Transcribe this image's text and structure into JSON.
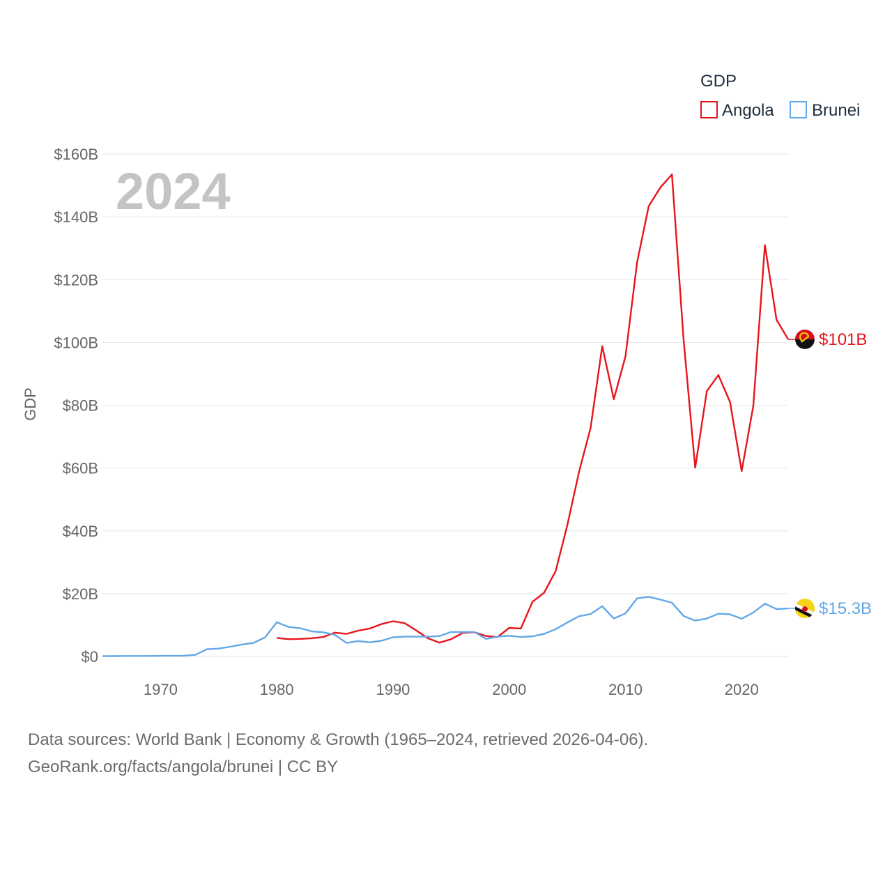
{
  "chart_data": {
    "type": "line",
    "ylabel": "GDP",
    "year_label": "2024",
    "legend_title": "GDP",
    "ylim": [
      0,
      160
    ],
    "xlim": [
      1965,
      2024
    ],
    "y_ticks": [
      0,
      20,
      40,
      60,
      80,
      100,
      120,
      140,
      160
    ],
    "y_tick_labels": [
      "$0",
      "$20B",
      "$40B",
      "$60B",
      "$80B",
      "$100B",
      "$120B",
      "$140B",
      "$160B"
    ],
    "x_ticks": [
      1970,
      1980,
      1990,
      2000,
      2010,
      2020
    ],
    "x_tick_labels": [
      "1970",
      "1980",
      "1990",
      "2000",
      "2010",
      "2020"
    ],
    "series": [
      {
        "name": "Angola",
        "color": "#e8141c",
        "end_label": "$101B",
        "flag_icon": "angola-flag-icon",
        "x": [
          1980,
          1981,
          1982,
          1983,
          1984,
          1985,
          1986,
          1987,
          1988,
          1989,
          1990,
          1991,
          1992,
          1993,
          1994,
          1995,
          1996,
          1997,
          1998,
          1999,
          2000,
          2001,
          2002,
          2003,
          2004,
          2005,
          2006,
          2007,
          2008,
          2009,
          2010,
          2011,
          2012,
          2013,
          2014,
          2015,
          2016,
          2017,
          2018,
          2019,
          2020,
          2021,
          2022,
          2023,
          2024
        ],
        "values": [
          5.9,
          5.5,
          5.6,
          5.8,
          6.2,
          7.6,
          7.2,
          8.2,
          8.9,
          10.3,
          11.2,
          10.6,
          8.3,
          5.8,
          4.4,
          5.5,
          7.5,
          7.7,
          6.5,
          6.2,
          9.1,
          8.9,
          17.4,
          20.3,
          27.2,
          41.8,
          58.7,
          72.8,
          98.8,
          81.9,
          95.5,
          125.5,
          143.4,
          149.3,
          153.5,
          101.0,
          60.1,
          84.5,
          89.6,
          81.0,
          59.0,
          79.8,
          131.0,
          107.2,
          101.0
        ]
      },
      {
        "name": "Brunei",
        "color": "#62a8e6",
        "end_label": "$15.3B",
        "flag_icon": "brunei-flag-icon",
        "x": [
          1965,
          1966,
          1967,
          1968,
          1969,
          1970,
          1971,
          1972,
          1973,
          1974,
          1975,
          1976,
          1977,
          1978,
          1979,
          1980,
          1981,
          1982,
          1983,
          1984,
          1985,
          1986,
          1987,
          1988,
          1989,
          1990,
          1991,
          1992,
          1993,
          1994,
          1995,
          1996,
          1997,
          1998,
          1999,
          2000,
          2001,
          2002,
          2003,
          2004,
          2005,
          2006,
          2007,
          2008,
          2009,
          2010,
          2011,
          2012,
          2013,
          2014,
          2015,
          2016,
          2017,
          2018,
          2019,
          2020,
          2021,
          2022,
          2023,
          2024
        ],
        "values": [
          0.1,
          0.1,
          0.15,
          0.15,
          0.15,
          0.2,
          0.2,
          0.25,
          0.5,
          2.3,
          2.5,
          3.1,
          3.8,
          4.3,
          6.1,
          10.9,
          9.4,
          9.0,
          8.0,
          7.7,
          6.9,
          4.3,
          4.9,
          4.5,
          5.0,
          6.1,
          6.3,
          6.3,
          6.3,
          6.5,
          7.8,
          7.8,
          7.8,
          5.6,
          6.3,
          6.6,
          6.2,
          6.4,
          7.2,
          8.7,
          10.8,
          12.8,
          13.5,
          16.0,
          12.1,
          13.7,
          18.5,
          19.0,
          18.1,
          17.1,
          12.9,
          11.4,
          12.1,
          13.6,
          13.4,
          12.0,
          14.0,
          16.8,
          15.1,
          15.3
        ]
      }
    ]
  },
  "footer": {
    "line1": "Data sources: World Bank | Economy & Growth (1965–2024, retrieved 2026-04-06).",
    "line2": "GeoRank.org/facts/angola/brunei | CC BY"
  }
}
